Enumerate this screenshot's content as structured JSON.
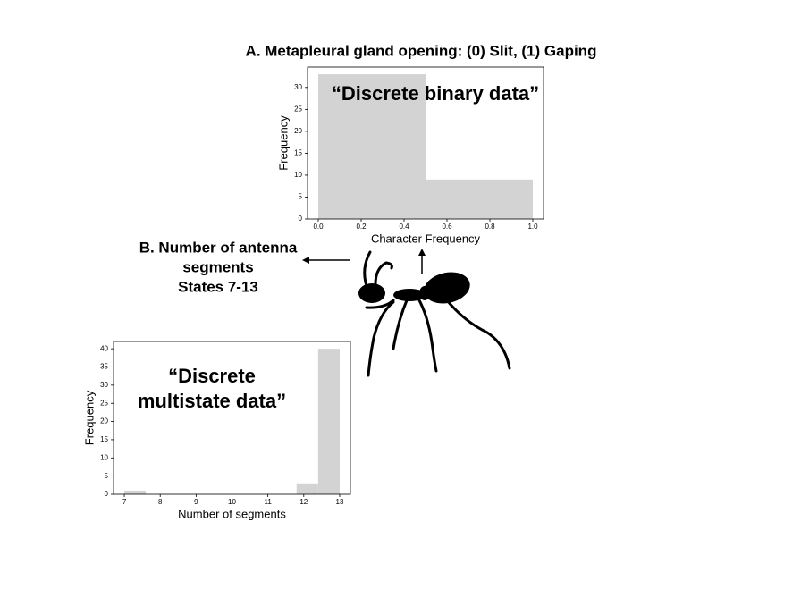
{
  "chart_data": [
    {
      "type": "histogram",
      "title": "A.  Metapleural gland opening: (0) Slit, (1) Gaping",
      "annotation_lines": [
        "“Discrete binary data”"
      ],
      "xlabel": "Character Frequency",
      "ylabel": "Frequency",
      "bins": [
        0,
        0.5,
        1.0
      ],
      "values": [
        33,
        9
      ],
      "color": "#d3d3d3",
      "xlim": [
        -0.05,
        1.05
      ],
      "ylim": [
        0,
        34.65
      ],
      "xticks": [
        {
          "value": 0,
          "label": "0.0"
        },
        {
          "value": 0.2,
          "label": "0.2"
        },
        {
          "value": 0.4,
          "label": "0.4"
        },
        {
          "value": 0.6,
          "label": "0.6"
        },
        {
          "value": 0.8,
          "label": "0.8"
        },
        {
          "value": 1.0,
          "label": "1.0"
        }
      ],
      "yticks": [
        0,
        5,
        10,
        15,
        20,
        25,
        30
      ]
    },
    {
      "type": "histogram",
      "title_lines": [
        "B. Number of antenna",
        "segments",
        "States 7-13"
      ],
      "annotation_lines": [
        "“Discrete",
        "multistate data”"
      ],
      "xlabel": "Number of segments",
      "ylabel": "Frequency",
      "bins": [
        7,
        7.6,
        8.2,
        8.8,
        9.4,
        10,
        10.6,
        11.2,
        11.8,
        12.4,
        13
      ],
      "values": [
        1,
        0,
        0,
        0,
        0,
        0,
        0,
        0,
        3,
        40
      ],
      "color": "#d3d3d3",
      "xlim": [
        6.7,
        13.3
      ],
      "ylim": [
        0,
        42
      ],
      "xticks": [
        7,
        8,
        9,
        10,
        11,
        12,
        13
      ],
      "yticks": [
        0,
        5,
        10,
        15,
        20,
        25,
        30,
        35,
        40
      ]
    }
  ]
}
